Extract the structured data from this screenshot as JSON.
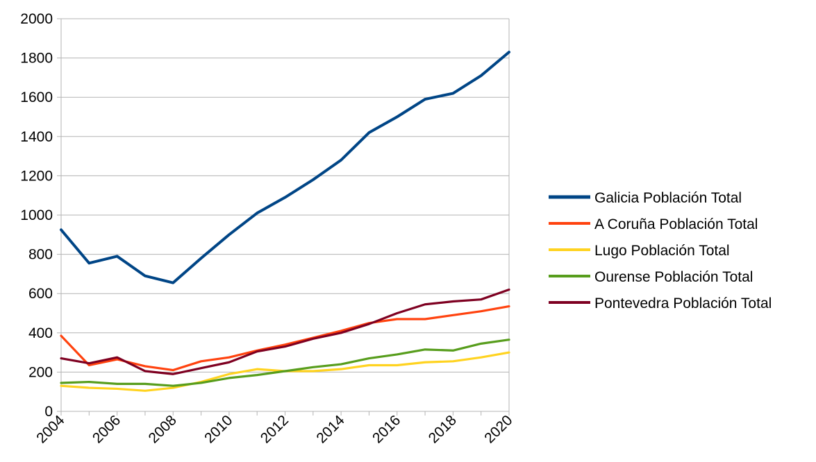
{
  "chart_data": {
    "type": "line",
    "title": "",
    "xlabel": "",
    "ylabel": "",
    "x": [
      2004,
      2005,
      2006,
      2007,
      2008,
      2009,
      2010,
      2011,
      2012,
      2013,
      2014,
      2015,
      2016,
      2017,
      2018,
      2019,
      2020
    ],
    "x_tick_labels": [
      "2004",
      "2006",
      "2008",
      "2010",
      "2012",
      "2014",
      "2016",
      "2018",
      "2020"
    ],
    "xlim": [
      2004,
      2020
    ],
    "ylim": [
      0,
      2000
    ],
    "y_ticks": [
      0,
      200,
      400,
      600,
      800,
      1000,
      1200,
      1400,
      1600,
      1800,
      2000
    ],
    "grid": "horizontal",
    "legend_position": "right",
    "series": [
      {
        "name": "Galicia Población Total",
        "color": "#004586",
        "values": [
          925,
          755,
          790,
          690,
          655,
          780,
          900,
          1010,
          1090,
          1180,
          1280,
          1420,
          1500,
          1590,
          1620,
          1710,
          1830
        ]
      },
      {
        "name": "A Coruña Población Total",
        "color": "#ff420e",
        "values": [
          385,
          235,
          265,
          230,
          210,
          255,
          275,
          310,
          340,
          375,
          410,
          450,
          470,
          470,
          490,
          510,
          535
        ]
      },
      {
        "name": "Lugo Población Total",
        "color": "#ffd320",
        "values": [
          130,
          120,
          115,
          105,
          120,
          150,
          190,
          215,
          205,
          205,
          215,
          235,
          235,
          250,
          255,
          275,
          300
        ]
      },
      {
        "name": "Ourense Población Total",
        "color": "#579d1c",
        "values": [
          145,
          150,
          140,
          140,
          130,
          145,
          170,
          185,
          205,
          225,
          240,
          270,
          290,
          315,
          310,
          345,
          365
        ]
      },
      {
        "name": "Pontevedra Población Total",
        "color": "#7e0021",
        "values": [
          270,
          245,
          275,
          205,
          190,
          220,
          250,
          305,
          330,
          370,
          400,
          445,
          500,
          545,
          560,
          570,
          620
        ]
      }
    ]
  }
}
